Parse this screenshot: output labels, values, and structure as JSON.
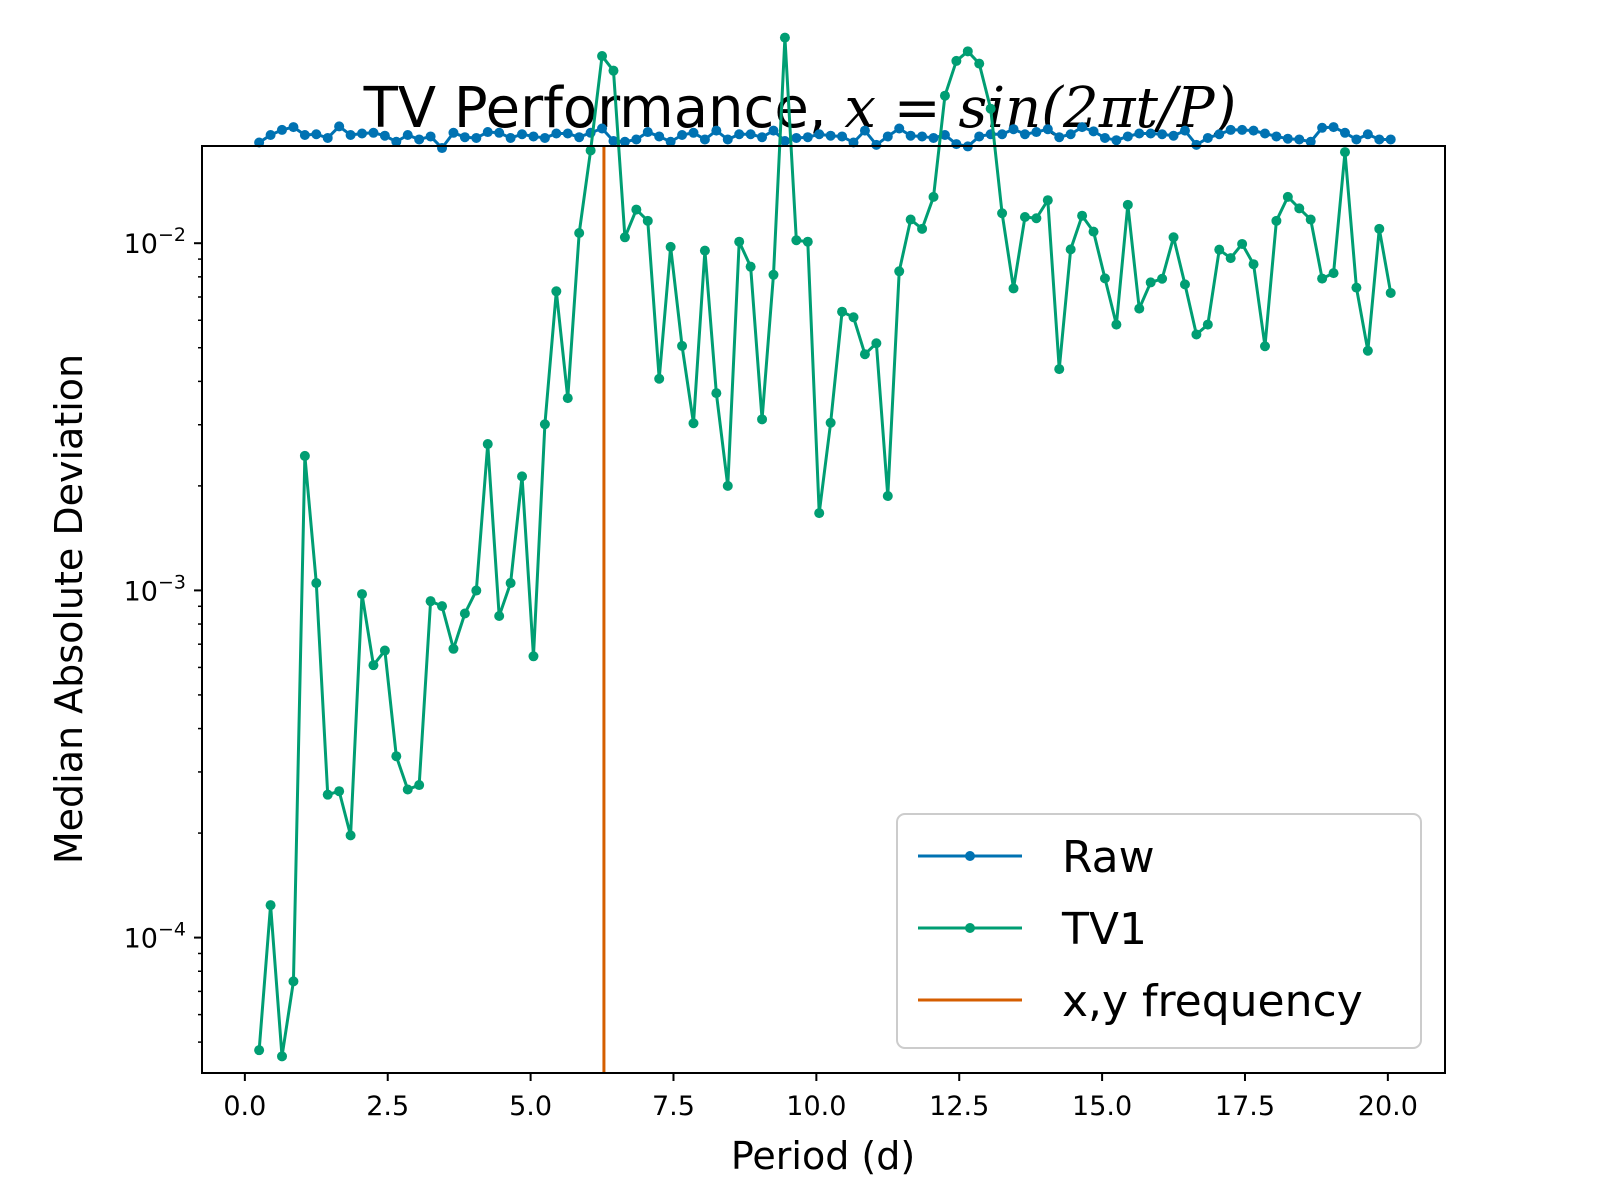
{
  "chart_data": {
    "type": "line",
    "title_text": "TV Performance, ",
    "title_math": "x = sin(2πt/P)",
    "xlabel": "Period (d)",
    "ylabel": "Median Absolute Deviation",
    "xlim": [
      -0.75,
      21.0
    ],
    "ylim_log10": [
      -4.39,
      -1.72
    ],
    "x_scale": "linear",
    "y_scale": "log",
    "x_ticks": [
      0.0,
      2.5,
      5.0,
      7.5,
      10.0,
      12.5,
      15.0,
      17.5,
      20.0
    ],
    "x_tick_labels": [
      "0.0",
      "2.5",
      "5.0",
      "7.5",
      "10.0",
      "12.5",
      "15.0",
      "17.5",
      "20.0"
    ],
    "y_ticks": [
      0.0001,
      0.001,
      0.01
    ],
    "y_tick_labels": [
      {
        "base": "10",
        "exp": "−4"
      },
      {
        "base": "10",
        "exp": "−3"
      },
      {
        "base": "10",
        "exp": "−2"
      }
    ],
    "legend_position": "lower-right",
    "vline": {
      "name": "x,y frequency",
      "x": 6.283,
      "color": "#d55e00"
    },
    "series": [
      {
        "name": "Raw",
        "color": "#0072b2",
        "x": [
          0.25,
          0.45,
          0.65,
          0.85,
          1.05,
          1.25,
          1.45,
          1.65,
          1.85,
          2.05,
          2.25,
          2.45,
          2.65,
          2.85,
          3.05,
          3.25,
          3.45,
          3.65,
          3.85,
          4.05,
          4.25,
          4.45,
          4.65,
          4.85,
          5.05,
          5.25,
          5.45,
          5.65,
          5.85,
          6.05,
          6.25,
          6.45,
          6.65,
          6.85,
          7.05,
          7.25,
          7.45,
          7.65,
          7.85,
          8.05,
          8.25,
          8.45,
          8.65,
          8.85,
          9.05,
          9.25,
          9.45,
          9.65,
          9.85,
          10.05,
          10.25,
          10.45,
          10.65,
          10.85,
          11.05,
          11.25,
          11.45,
          11.65,
          11.85,
          12.05,
          12.25,
          12.45,
          12.65,
          12.85,
          13.05,
          13.25,
          13.45,
          13.65,
          13.85,
          14.05,
          14.25,
          14.45,
          14.65,
          14.85,
          15.05,
          15.25,
          15.45,
          15.65,
          15.85,
          16.05,
          16.25,
          16.45,
          16.65,
          16.85,
          17.05,
          17.25,
          17.45,
          17.65,
          17.85,
          18.05,
          18.25,
          18.45,
          18.65,
          18.85,
          19.05,
          19.25,
          19.45,
          19.65,
          19.85,
          20.05
        ],
        "y": [
          0.0195,
          0.0205,
          0.0212,
          0.0216,
          0.0205,
          0.0206,
          0.0201,
          0.0217,
          0.0205,
          0.0207,
          0.0208,
          0.0204,
          0.0196,
          0.0205,
          0.0199,
          0.0203,
          0.0188,
          0.0208,
          0.0202,
          0.0201,
          0.0209,
          0.0208,
          0.0201,
          0.0206,
          0.0203,
          0.0201,
          0.0207,
          0.0207,
          0.0202,
          0.0208,
          0.0214,
          0.0197,
          0.0196,
          0.0199,
          0.0209,
          0.0203,
          0.0196,
          0.0205,
          0.0208,
          0.0199,
          0.0211,
          0.0199,
          0.0206,
          0.0206,
          0.0202,
          0.0211,
          0.0197,
          0.0201,
          0.0202,
          0.0206,
          0.0204,
          0.0203,
          0.0195,
          0.0211,
          0.0192,
          0.0203,
          0.0214,
          0.0204,
          0.0203,
          0.0201,
          0.0205,
          0.0193,
          0.019,
          0.0203,
          0.0206,
          0.0206,
          0.0213,
          0.0206,
          0.0209,
          0.0213,
          0.0202,
          0.0206,
          0.0216,
          0.021,
          0.0201,
          0.0198,
          0.0203,
          0.0207,
          0.0207,
          0.0206,
          0.0204,
          0.0211,
          0.0192,
          0.0201,
          0.0206,
          0.0212,
          0.0212,
          0.0211,
          0.0207,
          0.0203,
          0.02,
          0.0199,
          0.0196,
          0.0215,
          0.0216,
          0.0208,
          0.0199,
          0.0206,
          0.0199,
          0.0199
        ]
      },
      {
        "name": "TV1",
        "color": "#009e73",
        "x": [
          0.25,
          0.45,
          0.65,
          0.85,
          1.05,
          1.25,
          1.45,
          1.65,
          1.85,
          2.05,
          2.25,
          2.45,
          2.65,
          2.85,
          3.05,
          3.25,
          3.45,
          3.65,
          3.85,
          4.05,
          4.25,
          4.45,
          4.65,
          4.85,
          5.05,
          5.25,
          5.45,
          5.65,
          5.85,
          6.05,
          6.25,
          6.45,
          6.65,
          6.85,
          7.05,
          7.25,
          7.45,
          7.65,
          7.85,
          8.05,
          8.25,
          8.45,
          8.65,
          8.85,
          9.05,
          9.25,
          9.45,
          9.65,
          9.85,
          10.05,
          10.25,
          10.45,
          10.65,
          10.85,
          11.05,
          11.25,
          11.45,
          11.65,
          11.85,
          12.05,
          12.25,
          12.45,
          12.65,
          12.85,
          13.05,
          13.25,
          13.45,
          13.65,
          13.85,
          14.05,
          14.25,
          14.45,
          14.65,
          14.85,
          15.05,
          15.25,
          15.45,
          15.65,
          15.85,
          16.05,
          16.25,
          16.45,
          16.65,
          16.85,
          17.05,
          17.25,
          17.45,
          17.65,
          17.85,
          18.05,
          18.25,
          18.45,
          18.65,
          18.85,
          19.05,
          19.25,
          19.45,
          19.65,
          19.85,
          20.05
        ],
        "y": [
          4.74e-05,
          0.000124,
          4.55e-05,
          7.48e-05,
          0.00244,
          0.00105,
          0.000258,
          0.000264,
          0.000197,
          0.000976,
          0.000609,
          0.000671,
          0.000333,
          0.000267,
          0.000275,
          0.000931,
          0.000901,
          0.000679,
          0.000858,
          0.000999,
          0.00264,
          0.000844,
          0.00105,
          0.00213,
          0.000646,
          0.00301,
          0.00727,
          0.00358,
          0.0107,
          0.0185,
          0.0346,
          0.0314,
          0.0104,
          0.0125,
          0.0116,
          0.00407,
          0.00976,
          0.00506,
          0.00303,
          0.00952,
          0.0037,
          0.002,
          0.0101,
          0.00856,
          0.00311,
          0.00811,
          0.0391,
          0.0102,
          0.0101,
          0.00167,
          0.00304,
          0.00635,
          0.00612,
          0.00479,
          0.00515,
          0.00187,
          0.0083,
          0.0117,
          0.011,
          0.0136,
          0.0266,
          0.0335,
          0.0357,
          0.0329,
          0.0244,
          0.0122,
          0.00741,
          0.0119,
          0.0118,
          0.0133,
          0.00434,
          0.0096,
          0.012,
          0.0108,
          0.00792,
          0.00583,
          0.0129,
          0.00648,
          0.00771,
          0.0079,
          0.0104,
          0.00761,
          0.00546,
          0.00583,
          0.00958,
          0.00906,
          0.00995,
          0.0087,
          0.00505,
          0.0116,
          0.0136,
          0.0126,
          0.0117,
          0.00791,
          0.0082,
          0.0183,
          0.00745,
          0.0049,
          0.011,
          0.00719
        ]
      }
    ]
  }
}
